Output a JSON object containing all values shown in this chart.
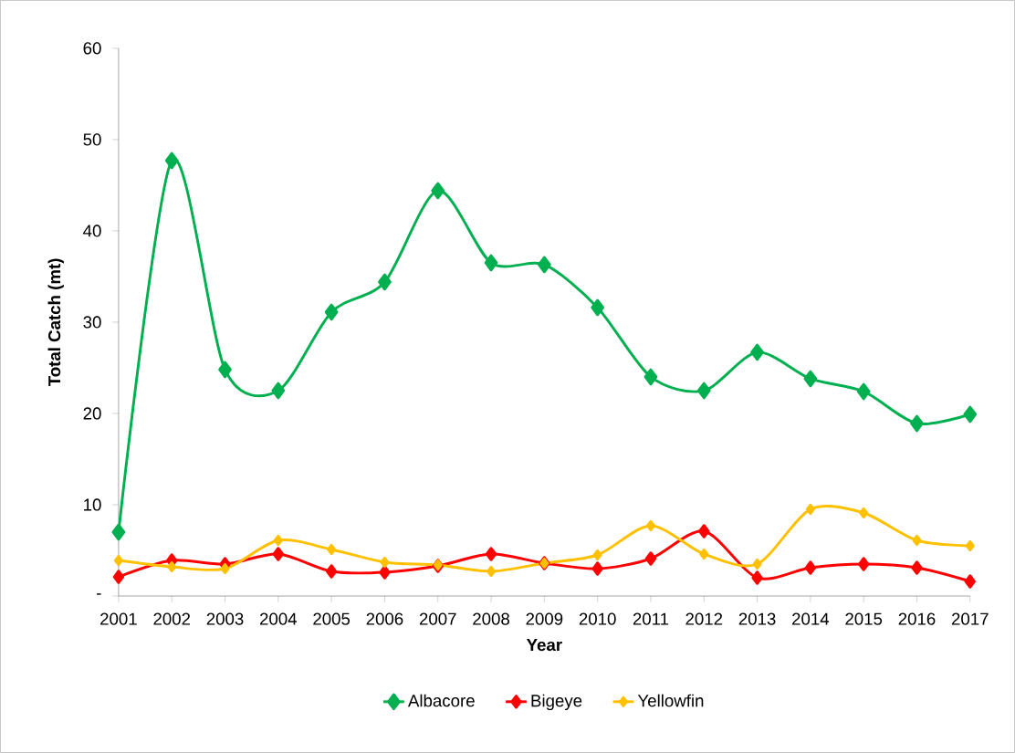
{
  "chart_data": {
    "type": "line",
    "xlabel": "Year",
    "ylabel": "Total Catch (mt)",
    "categories": [
      "2001",
      "2002",
      "2003",
      "2004",
      "2005",
      "2006",
      "2007",
      "2008",
      "2009",
      "2010",
      "2011",
      "2012",
      "2013",
      "2014",
      "2015",
      "2016",
      "2017"
    ],
    "series": [
      {
        "name": "Albacore",
        "color": "#00b050",
        "values": [
          7.0,
          47.7,
          24.8,
          22.5,
          31.1,
          34.4,
          44.4,
          36.5,
          36.3,
          31.6,
          24.0,
          22.5,
          26.7,
          23.8,
          22.4,
          18.9,
          19.9
        ]
      },
      {
        "name": "Bigeye",
        "color": "#ff0000",
        "values": [
          2.1,
          3.9,
          3.5,
          4.6,
          2.7,
          2.6,
          3.3,
          4.6,
          3.6,
          3.0,
          4.1,
          7.1,
          2.0,
          3.1,
          3.5,
          3.1,
          1.6
        ]
      },
      {
        "name": "Yellowfin",
        "color": "#ffc000",
        "values": [
          3.9,
          3.2,
          3.0,
          6.1,
          5.1,
          3.7,
          3.4,
          2.7,
          3.6,
          4.5,
          7.7,
          4.6,
          3.5,
          9.5,
          9.1,
          6.1,
          5.5
        ]
      }
    ],
    "ylim": [
      0,
      60
    ],
    "yticks": [
      {
        "value": 0,
        "label": "-"
      },
      10,
      20,
      30,
      40,
      50,
      60
    ],
    "marker": "diamond",
    "line_style": "solid",
    "grid": false,
    "legend": "bottom"
  }
}
